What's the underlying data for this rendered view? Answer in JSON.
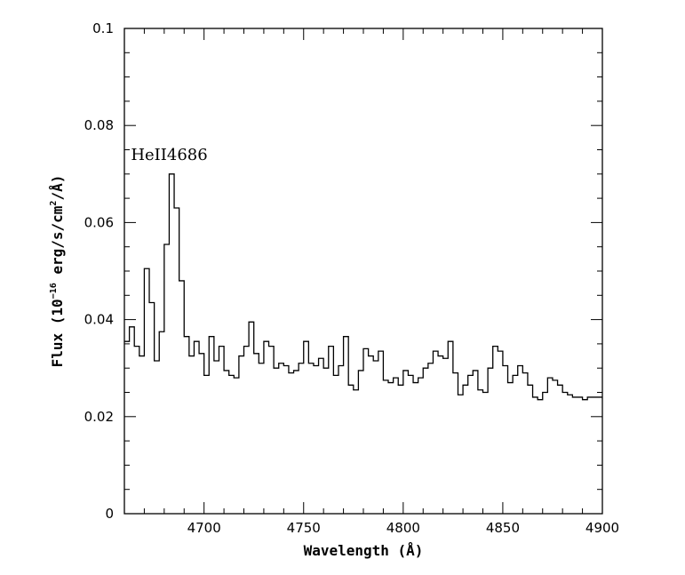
{
  "chart_data": {
    "type": "line",
    "style": "step",
    "title": "",
    "xlabel": "Wavelength (Å)",
    "ylabel_parts": [
      "Flux (10",
      "−16",
      " erg/s/cm",
      "2",
      "/Å)"
    ],
    "xlim": [
      4660,
      4900
    ],
    "ylim": [
      0,
      0.1
    ],
    "x_ticks": [
      4700,
      4750,
      4800,
      4850,
      4900
    ],
    "y_ticks": [
      0,
      0.02,
      0.04,
      0.06,
      0.08,
      0.1
    ],
    "y_tick_labels": [
      "0",
      "0.02",
      "0.04",
      "0.06",
      "0.08",
      "0.1"
    ],
    "grid": false,
    "line_color": "#000000",
    "annotations": [
      {
        "text": "HeII4686",
        "x": 4687,
        "y": 0.0725
      }
    ],
    "bin_start": 4660,
    "bin_width": 2.5,
    "series": [
      {
        "values": [
          0.0355,
          0.0385,
          0.0345,
          0.0325,
          0.0505,
          0.0435,
          0.0315,
          0.0375,
          0.0555,
          0.07,
          0.063,
          0.048,
          0.0365,
          0.0325,
          0.0355,
          0.033,
          0.0285,
          0.0365,
          0.0315,
          0.0345,
          0.0295,
          0.0285,
          0.028,
          0.0325,
          0.0345,
          0.0395,
          0.033,
          0.031,
          0.0355,
          0.0345,
          0.03,
          0.031,
          0.0305,
          0.029,
          0.0295,
          0.031,
          0.0355,
          0.031,
          0.0305,
          0.032,
          0.03,
          0.0345,
          0.0285,
          0.0305,
          0.0365,
          0.0265,
          0.0255,
          0.0295,
          0.034,
          0.0325,
          0.0315,
          0.0335,
          0.0275,
          0.027,
          0.028,
          0.0265,
          0.0295,
          0.0285,
          0.027,
          0.028,
          0.03,
          0.031,
          0.0335,
          0.0325,
          0.032,
          0.0355,
          0.029,
          0.0245,
          0.0265,
          0.0285,
          0.0295,
          0.0255,
          0.025,
          0.03,
          0.0345,
          0.0335,
          0.0305,
          0.027,
          0.0285,
          0.0305,
          0.029,
          0.0265,
          0.024,
          0.0235,
          0.025,
          0.028,
          0.0275,
          0.0265,
          0.025,
          0.0245,
          0.024,
          0.024,
          0.0235,
          0.024,
          0.024,
          0.024
        ]
      }
    ]
  }
}
